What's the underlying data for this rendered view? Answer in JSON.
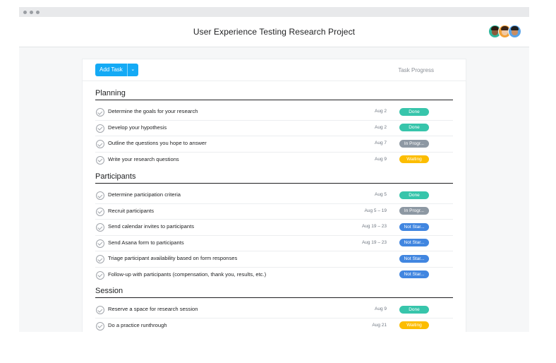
{
  "window": {
    "title": "User Experience Testing Research Project"
  },
  "toolbar": {
    "add_task_label": "Add Task",
    "dropdown_glyph": "⌄",
    "progress_header": "Task Progress"
  },
  "status_colors": {
    "Done": "#37c5ab",
    "In Progr...": "#8d98a3",
    "Waiting": "#fcbd01",
    "Not Star...": "#4186e0"
  },
  "avatars": [
    {
      "name": "avatar-1",
      "bg": "#2fb79d",
      "skin": "#8a5a3c",
      "hair": "#2c1b10"
    },
    {
      "name": "avatar-2",
      "bg": "#f2a23a",
      "skin": "#f0c9a5",
      "hair": "#3a2416"
    },
    {
      "name": "avatar-3",
      "bg": "#5aa3e8",
      "skin": "#c98d62",
      "hair": "#1f1f1f"
    }
  ],
  "sections": [
    {
      "title": "Planning",
      "tasks": [
        {
          "name": "Determine the goals for your research",
          "date": "Aug 2",
          "status": "Done"
        },
        {
          "name": "Develop your hypothesis",
          "date": "Aug 2",
          "status": "Done"
        },
        {
          "name": "Outline the questions you hope to answer",
          "date": "Aug 7",
          "status": "In Progr..."
        },
        {
          "name": "Write your research questions",
          "date": "Aug 9",
          "status": "Waiting"
        }
      ]
    },
    {
      "title": "Participants",
      "tasks": [
        {
          "name": "Determine participation criteria",
          "date": "Aug 5",
          "status": "Done"
        },
        {
          "name": "Recruit participants",
          "date": "Aug 5 – 19",
          "status": "In Progr..."
        },
        {
          "name": "Send calendar invites to participants",
          "date": "Aug 19 – 23",
          "status": "Not Star..."
        },
        {
          "name": "Send Asana form to participants",
          "date": "Aug 19 – 23",
          "status": "Not Star..."
        },
        {
          "name": "Triage participant availability based on form responses",
          "date": "",
          "status": "Not Star..."
        },
        {
          "name": "Follow-up with participants (compensation, thank you, results, etc.)",
          "date": "",
          "status": "Not Star..."
        }
      ]
    },
    {
      "title": "Session",
      "tasks": [
        {
          "name": "Reserve a space for research session",
          "date": "Aug 9",
          "status": "Done"
        },
        {
          "name": "Do a practice runthrough",
          "date": "Aug 21",
          "status": "Waiting"
        }
      ]
    }
  ]
}
